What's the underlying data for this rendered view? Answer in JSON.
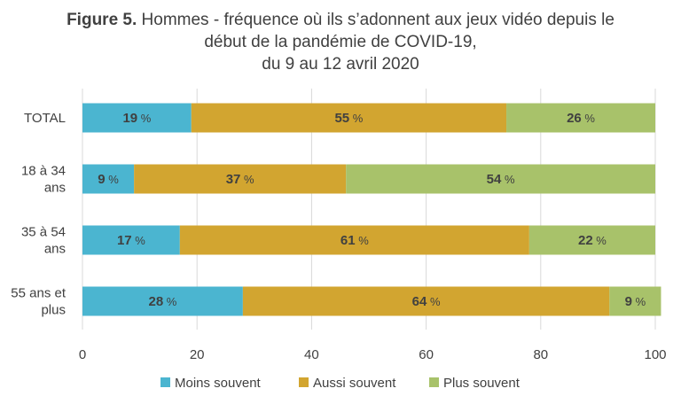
{
  "chart_data": {
    "type": "bar",
    "orientation": "horizontal",
    "stacked": true,
    "title": {
      "label": "Figure 5.",
      "line1": "Hommes - fréquence où ils s’adonnent aux jeux vidéo depuis le",
      "line2": "début de la pandémie de COVID-19,",
      "line3": "du 9 au 12 avril 2020"
    },
    "categories": [
      [
        "TOTAL"
      ],
      [
        "18 à 34",
        "ans"
      ],
      [
        "35 à 54",
        "ans"
      ],
      [
        "55 ans et",
        "plus"
      ]
    ],
    "series": [
      {
        "name": "Moins souvent",
        "color": "#4BB5D0",
        "values": [
          19,
          9,
          17,
          28
        ]
      },
      {
        "name": "Aussi souvent",
        "color": "#D2A530",
        "values": [
          55,
          37,
          61,
          64
        ]
      },
      {
        "name": "Plus souvent",
        "color": "#A8C26A",
        "values": [
          26,
          54,
          22,
          9
        ]
      }
    ],
    "value_suffix": "%",
    "xlim": [
      0,
      100
    ],
    "xticks": [
      "0",
      "20",
      "40",
      "60",
      "80",
      "100"
    ],
    "grid": true,
    "legend_position": "bottom"
  }
}
